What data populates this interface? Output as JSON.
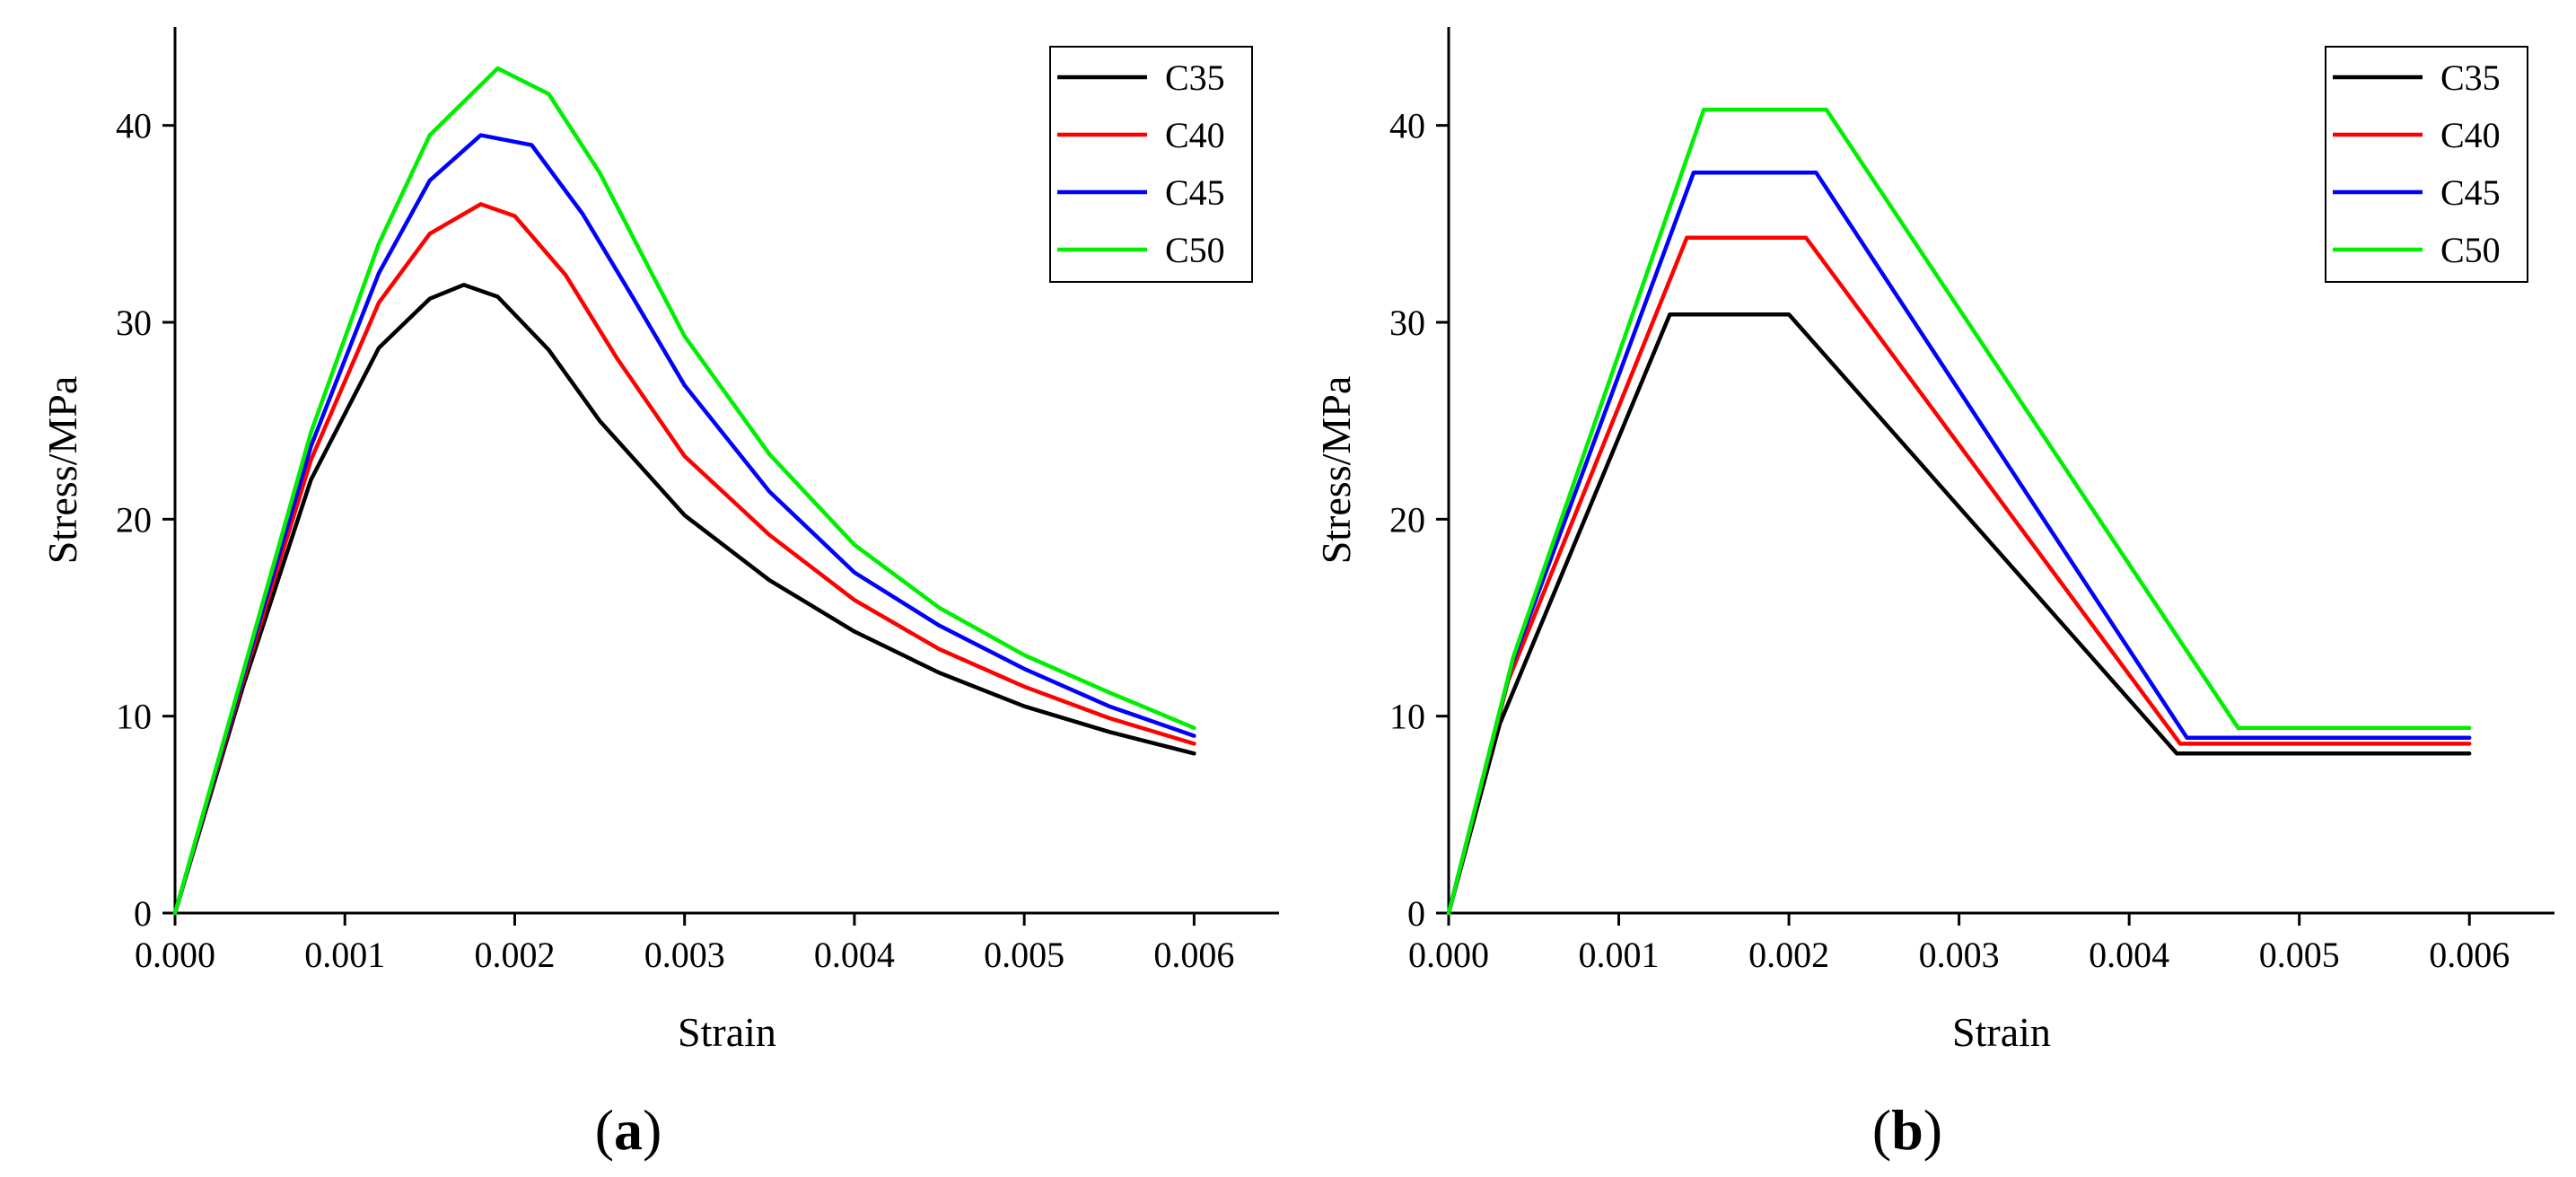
{
  "chart_data": [
    {
      "id": "a",
      "type": "line",
      "caption": "a",
      "xlabel": "Strain",
      "ylabel": "Stress/MPa",
      "xlim": [
        0,
        0.0065
      ],
      "ylim": [
        0,
        45
      ],
      "xticks": [
        "0.000",
        "0.001",
        "0.002",
        "0.003",
        "0.004",
        "0.005",
        "0.006"
      ],
      "yticks": [
        "0",
        "10",
        "20",
        "30",
        "40"
      ],
      "legend_position": "top-right",
      "grid": false,
      "series": [
        {
          "name": "C35",
          "color": "#000000",
          "x": [
            0,
            0.0004,
            0.0008,
            0.0012,
            0.0015,
            0.0017,
            0.0019,
            0.0022,
            0.0025,
            0.003,
            0.0035,
            0.004,
            0.0045,
            0.005,
            0.0055,
            0.006
          ],
          "y": [
            0,
            11.5,
            22.0,
            28.7,
            31.2,
            31.9,
            31.3,
            28.6,
            25.0,
            20.2,
            16.9,
            14.3,
            12.2,
            10.5,
            9.2,
            8.1
          ]
        },
        {
          "name": "C40",
          "color": "#ff0000",
          "x": [
            0,
            0.0004,
            0.0008,
            0.0012,
            0.0015,
            0.0018,
            0.002,
            0.0023,
            0.0026,
            0.003,
            0.0035,
            0.004,
            0.0045,
            0.005,
            0.0055,
            0.006
          ],
          "y": [
            0,
            11.8,
            23.0,
            31.0,
            34.5,
            36.0,
            35.4,
            32.4,
            28.2,
            23.2,
            19.2,
            15.9,
            13.4,
            11.5,
            9.9,
            8.6
          ]
        },
        {
          "name": "C45",
          "color": "#0000ff",
          "x": [
            0,
            0.0004,
            0.0008,
            0.0012,
            0.0015,
            0.0018,
            0.0021,
            0.0024,
            0.0027,
            0.003,
            0.0035,
            0.004,
            0.0045,
            0.005,
            0.0055,
            0.006
          ],
          "y": [
            0,
            12.0,
            23.7,
            32.5,
            37.2,
            39.5,
            39.0,
            35.5,
            31.2,
            26.8,
            21.4,
            17.3,
            14.6,
            12.4,
            10.5,
            9.0
          ]
        },
        {
          "name": "C50",
          "color": "#00ee00",
          "x": [
            0,
            0.0004,
            0.0008,
            0.0012,
            0.0015,
            0.0019,
            0.0022,
            0.0025,
            0.0028,
            0.003,
            0.0035,
            0.004,
            0.0045,
            0.005,
            0.0055,
            0.006
          ],
          "y": [
            0,
            12.2,
            24.4,
            34.0,
            39.5,
            42.9,
            41.6,
            37.6,
            32.6,
            29.3,
            23.3,
            18.7,
            15.5,
            13.1,
            11.2,
            9.4
          ]
        }
      ]
    },
    {
      "id": "b",
      "type": "line",
      "caption": "b",
      "xlabel": "Strain",
      "ylabel": "Stress/MPa",
      "xlim": [
        0,
        0.0065
      ],
      "ylim": [
        0,
        45
      ],
      "xticks": [
        "0.000",
        "0.001",
        "0.002",
        "0.003",
        "0.004",
        "0.005",
        "0.006"
      ],
      "yticks": [
        "0",
        "10",
        "20",
        "30",
        "40"
      ],
      "legend_position": "top-right",
      "grid": false,
      "series": [
        {
          "name": "C35",
          "color": "#000000",
          "x": [
            0,
            0.0003,
            0.0013,
            0.002,
            0.00428,
            0.006
          ],
          "y": [
            0,
            9.6,
            30.4,
            30.4,
            8.1,
            8.1
          ]
        },
        {
          "name": "C40",
          "color": "#ff0000",
          "x": [
            0,
            0.00035,
            0.0014,
            0.0021,
            0.0043,
            0.006
          ],
          "y": [
            0,
            11.8,
            34.3,
            34.3,
            8.6,
            8.6
          ]
        },
        {
          "name": "C45",
          "color": "#0000ff",
          "x": [
            0,
            0.00037,
            0.00144,
            0.00216,
            0.00434,
            0.006
          ],
          "y": [
            0,
            12.6,
            37.6,
            37.6,
            8.9,
            8.9
          ]
        },
        {
          "name": "C50",
          "color": "#00ee00",
          "x": [
            0,
            0.00038,
            0.0015,
            0.00222,
            0.00464,
            0.006
          ],
          "y": [
            0,
            13.0,
            40.8,
            40.8,
            9.4,
            9.4
          ]
        }
      ]
    }
  ]
}
